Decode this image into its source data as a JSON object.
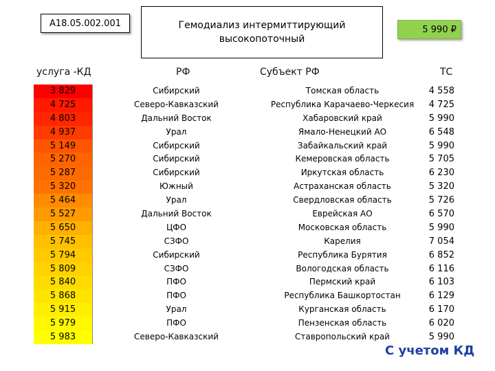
{
  "header": {
    "code": "A18.05.002.001",
    "title_line1": "Гемодиализ интермиттирующий",
    "title_line2": "высокопоточный",
    "price": "5 990 ₽"
  },
  "columns": {
    "service": "услуга -КД",
    "rf": "РФ",
    "subject": "Субъект РФ",
    "tc": "ТС"
  },
  "rows": [
    {
      "kd": "3 829",
      "rf": "Сибирский",
      "subject": "Томская область",
      "tc": "4 558",
      "color": "#ff0000"
    },
    {
      "kd": "4 725",
      "rf": "Северо-Кавказский",
      "subject": "Республика Карачаево-Черкесия",
      "tc": "4 725",
      "color": "#ff1a00"
    },
    {
      "kd": "4 803",
      "rf": "Дальний Восток",
      "subject": "Хабаровский край",
      "tc": "5 990",
      "color": "#ff2600"
    },
    {
      "kd": "4 937",
      "rf": "Урал",
      "subject": "Ямало-Ненецкий АО",
      "tc": "6 548",
      "color": "#ff3a00"
    },
    {
      "kd": "5 149",
      "rf": "Сибирский",
      "subject": "Забайкальский край",
      "tc": "5 990",
      "color": "#ff5500"
    },
    {
      "kd": "5 270",
      "rf": "Сибирский",
      "subject": "Кемеровская область",
      "tc": "5 705",
      "color": "#ff6400"
    },
    {
      "kd": "5 287",
      "rf": "Сибирский",
      "subject": "Иркутская область",
      "tc": "6 230",
      "color": "#ff6a00"
    },
    {
      "kd": "5 320",
      "rf": "Южный",
      "subject": "Астраханская область",
      "tc": "5 320",
      "color": "#ff7200"
    },
    {
      "kd": "5 464",
      "rf": "Урал",
      "subject": "Свердловская область",
      "tc": "5 726",
      "color": "#ff8c00"
    },
    {
      "kd": "5 527",
      "rf": "Дальний Восток",
      "subject": "Еврейская АО",
      "tc": "6 570",
      "color": "#ff9a00"
    },
    {
      "kd": "5 650",
      "rf": "ЦФО",
      "subject": "Московская область",
      "tc": "5 990",
      "color": "#ffb000"
    },
    {
      "kd": "5 745",
      "rf": "СЗФО",
      "subject": "Карелия",
      "tc": "7 054",
      "color": "#ffc000"
    },
    {
      "kd": "5 794",
      "rf": "Сибирский",
      "subject": "Республика Бурятия",
      "tc": "6 852",
      "color": "#ffcb00"
    },
    {
      "kd": "5 809",
      "rf": "СЗФО",
      "subject": "Вологодская область",
      "tc": "6 116",
      "color": "#ffd200"
    },
    {
      "kd": "5 840",
      "rf": "ПФО",
      "subject": "Пермский край",
      "tc": "6 103",
      "color": "#ffdc00"
    },
    {
      "kd": "5 868",
      "rf": "ПФО",
      "subject": "Республика Башкортостан",
      "tc": "6 129",
      "color": "#ffe400"
    },
    {
      "kd": "5 915",
      "rf": "Урал",
      "subject": "Курганская область",
      "tc": "6 170",
      "color": "#ffee00"
    },
    {
      "kd": "5 979",
      "rf": "ПФО",
      "subject": "Пензенская область",
      "tc": "6 020",
      "color": "#fff800"
    },
    {
      "kd": "5 983",
      "rf": "Северо-Кавказский",
      "subject": "Ставропольский край",
      "tc": "5 990",
      "color": "#ffff00"
    }
  ],
  "footer": "С учетом КД"
}
